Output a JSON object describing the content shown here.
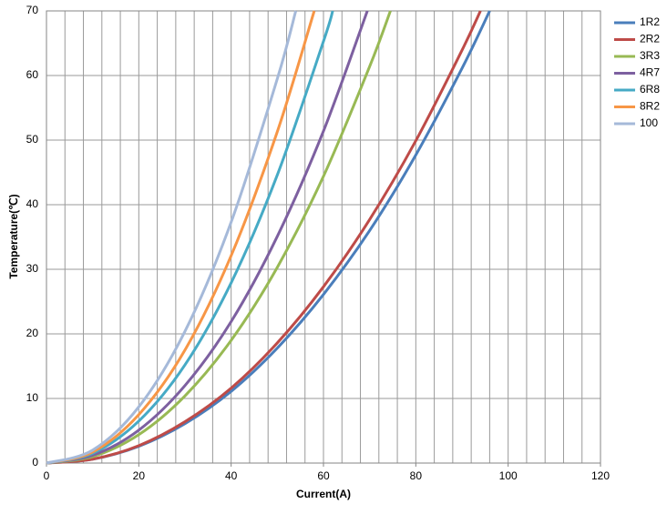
{
  "chart_data": {
    "type": "line",
    "x_label": "Current(A)",
    "y_label": "Temperature(℃)",
    "xlim": [
      0,
      120
    ],
    "xticks": [
      0,
      20,
      40,
      60,
      80,
      100,
      120
    ],
    "xgrid": [
      4,
      8,
      12,
      16,
      20,
      24,
      28,
      32,
      36,
      40,
      44,
      48,
      52,
      56,
      60,
      64,
      68,
      72,
      76,
      80,
      84,
      88,
      92,
      96,
      100,
      104,
      108,
      112,
      116
    ],
    "ylim": [
      0,
      70
    ],
    "yticks": [
      0,
      10,
      20,
      30,
      40,
      50,
      60,
      70
    ],
    "grid": true,
    "legend": "right",
    "series": [
      {
        "name": "1R2",
        "color": "#4a7ebb",
        "x": [
          0,
          10,
          20,
          30,
          40,
          50,
          60,
          70,
          80,
          90,
          96
        ],
        "values": [
          0,
          0.6,
          2.6,
          6.1,
          11.1,
          17.8,
          26.1,
          36.0,
          47.7,
          61.1,
          70
        ]
      },
      {
        "name": "2R2",
        "color": "#be4b48",
        "x": [
          0,
          10,
          20,
          30,
          40,
          50,
          60,
          70,
          80,
          90,
          94
        ],
        "values": [
          0,
          0.6,
          2.7,
          6.4,
          11.6,
          18.6,
          27.3,
          37.7,
          49.9,
          63.9,
          70
        ]
      },
      {
        "name": "3R3",
        "color": "#98b954",
        "x": [
          0,
          10,
          20,
          30,
          40,
          50,
          60,
          70,
          74.5
        ],
        "values": [
          0,
          1.0,
          4.4,
          10.4,
          19.0,
          30.3,
          44.4,
          61.4,
          70
        ]
      },
      {
        "name": "4R7",
        "color": "#7d60a0",
        "x": [
          0,
          10,
          20,
          30,
          40,
          50,
          60,
          69.5
        ],
        "values": [
          0,
          1.2,
          5.1,
          12.0,
          21.9,
          35.1,
          51.4,
          70
        ]
      },
      {
        "name": "6R8",
        "color": "#46aac5",
        "x": [
          0,
          10,
          20,
          30,
          40,
          50,
          60,
          62
        ],
        "values": [
          0,
          1.5,
          6.5,
          15.2,
          27.9,
          44.6,
          65.3,
          70
        ]
      },
      {
        "name": "8R2",
        "color": "#f79646",
        "x": [
          0,
          10,
          20,
          30,
          40,
          50,
          58
        ],
        "values": [
          0,
          1.7,
          7.5,
          17.5,
          32.1,
          51.3,
          70
        ]
      },
      {
        "name": "100",
        "color": "#a5b9d9",
        "x": [
          0,
          10,
          20,
          30,
          40,
          50,
          54
        ],
        "values": [
          0,
          2.0,
          8.7,
          20.4,
          37.3,
          59.5,
          70
        ]
      }
    ]
  }
}
